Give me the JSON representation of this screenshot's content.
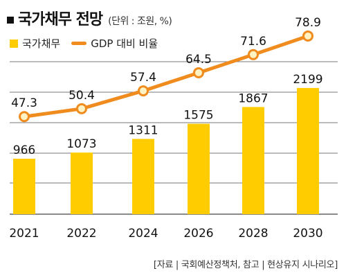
{
  "header": {
    "title": "국가채무 전망",
    "unit": "(단위 : 조원, %)"
  },
  "legend": {
    "bar_label": "국가채무",
    "line_label": "GDP 대비 비율"
  },
  "source": "[자료 | 국회예산정책처, 참고 | 현상유지 시나리오]",
  "colors": {
    "bar": "#FFCC00",
    "line": "#F08C1E",
    "marker_fill": "#FFF3C4",
    "grid": "#777777"
  },
  "chart_data": {
    "type": "bar",
    "categories": [
      "2021",
      "2022",
      "2024",
      "2026",
      "2028",
      "2030"
    ],
    "series": [
      {
        "name": "국가채무",
        "type": "bar",
        "values": [
          966,
          1073,
          1311,
          1575,
          1867,
          2199
        ]
      },
      {
        "name": "GDP 대비 비율",
        "type": "line",
        "values": [
          47.3,
          50.4,
          57.4,
          64.5,
          71.6,
          78.9
        ]
      }
    ],
    "title": "국가채무 전망",
    "xlabel": "",
    "ylabel": "",
    "bar_ylim": [
      0,
      2500
    ],
    "line_ylim": [
      20,
      105
    ],
    "grid": true,
    "legend_position": "top-left"
  }
}
